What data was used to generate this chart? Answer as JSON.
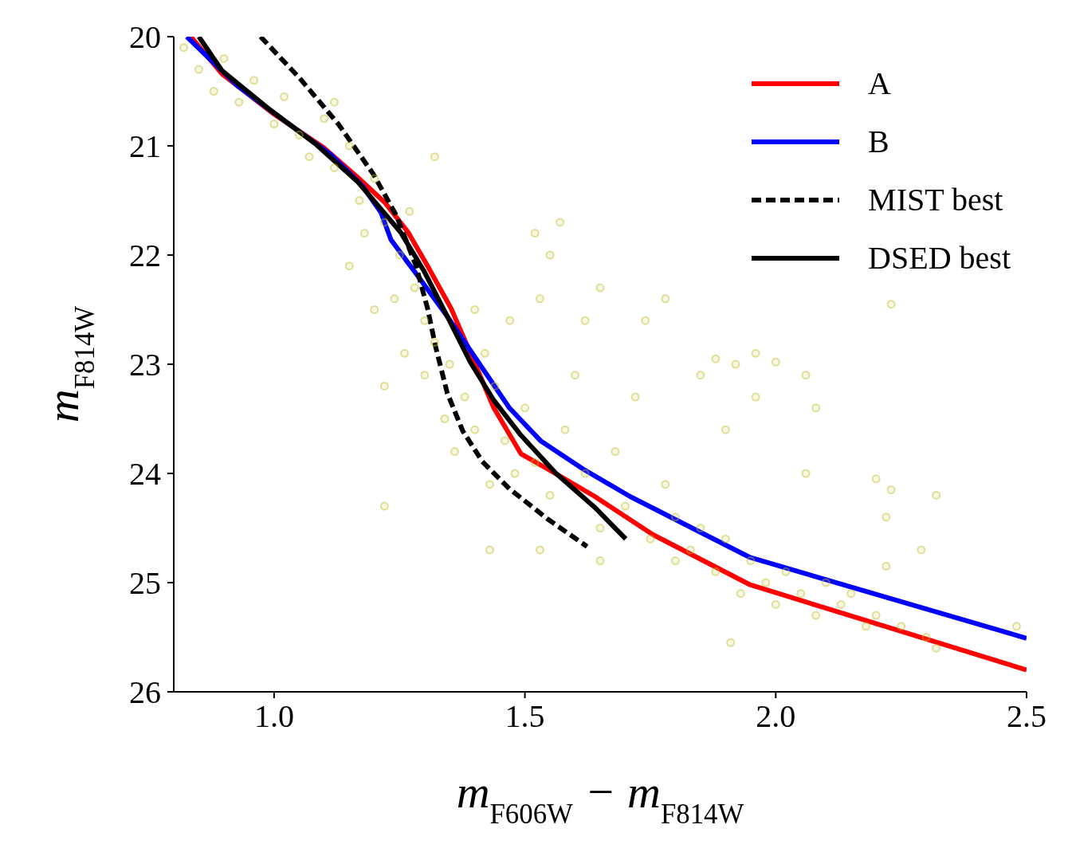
{
  "chart_data": {
    "type": "scatter",
    "xlabel": "m$_{F606W}$ − m$_{F814W}$",
    "ylabel": "m$_{F814W}$",
    "xlim": [
      0.8,
      2.5
    ],
    "xticks": [
      {
        "value": 1.0,
        "label": "1.0"
      },
      {
        "value": 1.5,
        "label": "1.5"
      },
      {
        "value": 2.0,
        "label": "2.0"
      },
      {
        "value": 2.5,
        "label": "2.5"
      }
    ],
    "ylim": [
      26,
      20
    ],
    "yticks": [
      20,
      21,
      22,
      23,
      24,
      25,
      26
    ],
    "grid": false,
    "legend": "top right",
    "series": [
      {
        "marker": "circle",
        "color": "#bcbd22",
        "x": [
          0.82,
          0.85,
          0.9,
          0.88,
          0.93,
          0.96,
          1.0,
          1.02,
          1.05,
          1.07,
          1.1,
          1.12,
          1.15,
          1.17,
          1.2,
          1.18,
          1.22,
          1.25,
          1.27,
          1.24,
          1.28,
          1.3,
          1.26,
          1.32,
          1.3,
          1.22,
          1.35,
          1.34,
          1.38,
          1.36,
          1.4,
          1.42,
          1.4,
          1.44,
          1.46,
          1.43,
          1.48,
          1.5,
          1.52,
          1.47,
          1.53,
          1.55,
          1.58,
          1.6,
          1.62,
          1.65,
          1.68,
          1.7,
          1.72,
          1.75,
          1.78,
          1.8,
          1.83,
          1.85,
          1.88,
          1.9,
          1.93,
          1.95,
          1.98,
          2.0,
          2.02,
          2.05,
          2.08,
          2.1,
          2.13,
          2.15,
          2.18,
          2.2,
          2.25,
          2.3,
          2.32,
          2.48,
          1.52,
          1.57,
          1.55,
          1.62,
          1.65,
          1.74,
          1.78,
          1.85,
          1.88,
          1.92,
          1.96,
          2.0,
          2.06,
          2.08,
          2.23,
          1.96,
          1.9,
          2.06,
          2.2,
          2.23,
          2.32,
          2.22,
          2.29,
          1.91,
          2.22,
          1.22,
          1.43,
          1.53,
          1.15,
          1.12,
          1.32,
          1.2,
          1.65,
          1.8
        ],
        "values": [
          20.1,
          20.3,
          20.2,
          20.5,
          20.6,
          20.4,
          20.8,
          20.55,
          20.9,
          21.1,
          20.75,
          21.2,
          21.0,
          21.5,
          21.3,
          21.8,
          21.7,
          22.0,
          21.6,
          22.4,
          22.3,
          22.6,
          22.9,
          22.8,
          23.1,
          23.2,
          23.0,
          23.5,
          23.3,
          23.8,
          22.5,
          22.9,
          23.6,
          23.2,
          23.7,
          24.1,
          24.0,
          23.4,
          23.9,
          22.6,
          22.4,
          24.2,
          23.6,
          23.1,
          24.0,
          24.5,
          23.8,
          24.3,
          23.3,
          24.6,
          24.1,
          24.4,
          24.7,
          24.5,
          24.9,
          24.6,
          25.1,
          24.8,
          25.0,
          25.2,
          24.9,
          25.1,
          25.3,
          25.0,
          25.2,
          25.1,
          25.4,
          25.3,
          25.4,
          25.5,
          25.6,
          25.4,
          21.8,
          21.7,
          22.0,
          22.6,
          22.3,
          22.6,
          22.4,
          23.1,
          22.95,
          23.0,
          22.9,
          22.98,
          23.1,
          23.4,
          22.45,
          23.3,
          23.6,
          24.0,
          24.05,
          24.15,
          24.2,
          24.4,
          24.7,
          25.55,
          24.85,
          24.3,
          24.7,
          24.7,
          22.1,
          20.6,
          21.1,
          22.5,
          24.8,
          24.8
        ]
      },
      {
        "type": "line",
        "name": "A",
        "color": "#ff0000",
        "line_style": "solid",
        "x": [
          0.834,
          0.896,
          0.997,
          1.097,
          1.167,
          1.221,
          1.267,
          1.306,
          1.353,
          1.399,
          1.438,
          1.492,
          1.546,
          1.639,
          1.755,
          1.949,
          2.5
        ],
        "values": [
          20,
          20.34,
          20.7,
          21.01,
          21.29,
          21.52,
          21.79,
          22.1,
          22.49,
          22.98,
          23.4,
          23.82,
          23.96,
          24.21,
          24.56,
          25.02,
          25.8
        ]
      },
      {
        "type": "line",
        "name": "B",
        "color": "#0000ff",
        "line_style": "solid",
        "x": [
          0.826,
          0.927,
          1.0,
          1.113,
          1.175,
          1.213,
          1.233,
          1.283,
          1.345,
          1.407,
          1.469,
          1.531,
          1.616,
          1.709,
          1.949,
          2.5
        ],
        "values": [
          20,
          20.45,
          20.7,
          21.08,
          21.36,
          21.61,
          21.86,
          22.17,
          22.56,
          22.98,
          23.4,
          23.7,
          23.96,
          24.21,
          24.77,
          25.51
        ]
      },
      {
        "type": "line",
        "name": "MIST best",
        "color": "#000000",
        "line_style": "dashed",
        "x": [
          0.973,
          1.051,
          1.128,
          1.198,
          1.244,
          1.283,
          1.306,
          1.322,
          1.345,
          1.376,
          1.415,
          1.469,
          1.546,
          1.624
        ],
        "values": [
          20,
          20.38,
          20.8,
          21.26,
          21.64,
          22.1,
          22.49,
          22.84,
          23.26,
          23.61,
          23.89,
          24.14,
          24.42,
          24.67
        ]
      },
      {
        "type": "line",
        "name": "DSED best",
        "color": "#000000",
        "line_style": "solid",
        "x": [
          0.85,
          0.896,
          0.989,
          1.082,
          1.167,
          1.252,
          1.298,
          1.345,
          1.391,
          1.438,
          1.492,
          1.562,
          1.639,
          1.701
        ],
        "values": [
          20,
          20.31,
          20.66,
          20.98,
          21.33,
          21.79,
          22.14,
          22.56,
          22.98,
          23.33,
          23.65,
          24.0,
          24.31,
          24.6
        ]
      }
    ]
  }
}
